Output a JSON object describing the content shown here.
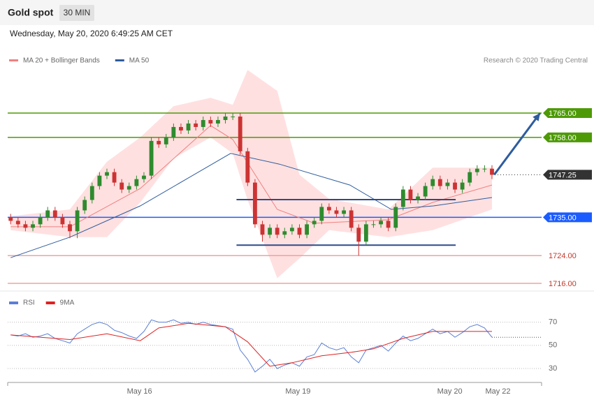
{
  "header": {
    "title": "Gold spot",
    "timeframe": "30 MIN",
    "timestamp": "Wednesday, May 20, 2020 6:49:25 AM CET",
    "source": "Research © 2020 Trading Central"
  },
  "chart_data": [
    {
      "type": "candlestick",
      "xlim": [
        -0.4,
        71.7
      ],
      "ylim": [
        1714.2,
        1789.5
      ],
      "up_color": "#2e8b2e",
      "down_color": "#cc3333",
      "open": [
        1735,
        1734,
        1733,
        1732,
        1733,
        1735,
        1737,
        1735,
        1733,
        1731,
        1737,
        1740,
        1744,
        1747,
        1748,
        1745,
        1743,
        1744,
        1746,
        1747,
        1757,
        1756,
        1758,
        1761,
        1760,
        1762,
        1761,
        1763,
        1762,
        1763,
        1764,
        1764,
        1754,
        1745,
        1733,
        1730,
        1732,
        1730,
        1731,
        1732,
        1730,
        1733,
        1734,
        1738,
        1737,
        1736,
        1737,
        1732,
        1728,
        1733,
        1733,
        1734,
        1732,
        1738,
        1743,
        1740,
        1741,
        1744,
        1746,
        1744,
        1745,
        1743,
        1745,
        1748,
        1749,
        1749
      ],
      "high": [
        1736,
        1735,
        1734,
        1734,
        1736,
        1738,
        1738,
        1736,
        1734,
        1738,
        1741,
        1745,
        1748,
        1749,
        1749,
        1746,
        1745,
        1747,
        1748,
        1758,
        1758,
        1759,
        1762,
        1762,
        1763,
        1763,
        1764,
        1764,
        1764,
        1765,
        1765,
        1765,
        1755,
        1746,
        1734,
        1733,
        1733,
        1732,
        1733,
        1733,
        1734,
        1735,
        1739,
        1739,
        1738,
        1738,
        1738,
        1733,
        1734,
        1734,
        1735,
        1735,
        1739,
        1744,
        1744,
        1742,
        1745,
        1747,
        1747,
        1746,
        1746,
        1746,
        1749,
        1750,
        1750,
        1750
      ],
      "low": [
        1733,
        1732,
        1731,
        1731,
        1732,
        1734,
        1734,
        1732,
        1729,
        1729,
        1736,
        1739,
        1743,
        1746,
        1744,
        1742,
        1742,
        1743,
        1745,
        1746,
        1755,
        1755,
        1757,
        1759,
        1759,
        1760,
        1760,
        1761,
        1761,
        1762,
        1763,
        1753,
        1744,
        1732,
        1728,
        1729,
        1729,
        1729,
        1730,
        1729,
        1729,
        1732,
        1733,
        1736,
        1735,
        1735,
        1731,
        1724,
        1727,
        1732,
        1732,
        1731,
        1731,
        1737,
        1739,
        1739,
        1740,
        1743,
        1743,
        1743,
        1742,
        1742,
        1744,
        1747,
        1748,
        1746
      ],
      "close": [
        1734,
        1733,
        1732,
        1733,
        1735,
        1737,
        1735,
        1733,
        1731,
        1737,
        1740,
        1744,
        1747,
        1748,
        1745,
        1743,
        1744,
        1746,
        1747,
        1757,
        1756,
        1758,
        1761,
        1760,
        1762,
        1761,
        1763,
        1762,
        1763,
        1764,
        1764,
        1754,
        1745,
        1733,
        1730,
        1732,
        1730,
        1731,
        1732,
        1730,
        1733,
        1734,
        1738,
        1737,
        1736,
        1737,
        1732,
        1728,
        1733,
        1733,
        1734,
        1732,
        1738,
        1743,
        1740,
        1741,
        1744,
        1746,
        1744,
        1745,
        1743,
        1745,
        1748,
        1749,
        1749,
        1747.25
      ],
      "series": [
        {
          "name": "MA 20 + Bollinger Bands",
          "color": "#f08080",
          "x": [
            0,
            8,
            17.5,
            27,
            30,
            36,
            41,
            51,
            57,
            65
          ],
          "values": [
            1732.3,
            1732.3,
            1743.3,
            1761.4,
            1757.4,
            1737.3,
            1733.3,
            1734.3,
            1739.3,
            1744.3
          ]
        },
        {
          "name": "MA 50",
          "color": "#2e5c9e",
          "x": [
            0,
            8,
            17.5,
            29.7,
            36.3,
            45.8,
            51.4,
            57.1,
            65
          ],
          "values": [
            1723.4,
            1729.3,
            1738.3,
            1753.4,
            1750.3,
            1744.3,
            1737.3,
            1738.3,
            1740.7
          ]
        }
      ],
      "bands": {
        "color": "#ffd6d6",
        "x": [
          0,
          8,
          13,
          17.5,
          22,
          27,
          30,
          32,
          36,
          39,
          43,
          51,
          57,
          65
        ],
        "upper": [
          1735.3,
          1737.3,
          1751,
          1758,
          1767,
          1769.4,
          1767.4,
          1777.4,
          1771.4,
          1747.3,
          1740.3,
          1737.3,
          1749.3,
          1749.3
        ],
        "lower": [
          1731.3,
          1729.3,
          1729.3,
          1739.3,
          1752,
          1758,
          1753.4,
          1740,
          1717.5,
          1723.2,
          1731.3,
          1729.3,
          1731.3,
          1737.3
        ]
      },
      "levels": [
        {
          "value": 1765,
          "label": "1765.00",
          "color": "#4d9a06",
          "label_box": true,
          "line": "solid"
        },
        {
          "value": 1758,
          "label": "1758.00",
          "color": "#4d9a06",
          "label_box": true,
          "line": "solid"
        },
        {
          "value": 1747.25,
          "label": "1747.25",
          "color": "#333333",
          "label_box": true,
          "line": "dotted"
        },
        {
          "value": 1735,
          "label": "1735.00",
          "color": "#1a5cff",
          "label_box": true,
          "line": "solid"
        },
        {
          "value": 1724,
          "label": "1724.00",
          "color": "#f4a0a0",
          "label_box": false,
          "line": "solid"
        },
        {
          "value": 1716,
          "label": "1716.00",
          "color": "#f4a0a0",
          "label_box": false,
          "line": "solid"
        }
      ],
      "ranges": [
        {
          "value": 1740.1,
          "from": 30.5,
          "to": 60.1
        },
        {
          "value": 1727,
          "from": 30.5,
          "to": 60.1
        }
      ],
      "range_color": "#2e4a8a",
      "arrow": {
        "x": [
          65.3,
          71.5
        ],
        "y": [
          1747.25,
          1765
        ],
        "color": "#2e5c9e"
      }
    },
    {
      "type": "line",
      "xlim": [
        -0.4,
        71.7
      ],
      "ylim": [
        18,
        83
      ],
      "yticks": [
        30,
        50,
        70
      ],
      "grid": true,
      "xticks": [
        {
          "value": 17.4,
          "label": "May 16"
        },
        {
          "value": 38.8,
          "label": "May 19"
        },
        {
          "value": 59.3,
          "label": "May 20"
        },
        {
          "value": 65.8,
          "label": "May 22"
        }
      ],
      "series": [
        {
          "name": "RSI",
          "color": "#5b7fd6",
          "values": [
            59,
            58,
            60,
            57,
            58,
            60,
            56,
            54,
            52,
            60,
            64,
            68,
            70,
            68,
            63,
            61,
            58,
            56,
            62,
            72,
            70,
            70,
            72,
            69,
            70,
            68,
            70,
            68,
            67,
            66,
            64,
            46,
            38,
            27,
            32,
            38,
            30,
            33,
            35,
            32,
            40,
            42,
            52,
            48,
            46,
            48,
            40,
            35,
            46,
            48,
            50,
            45,
            52,
            58,
            54,
            56,
            60,
            64,
            60,
            62,
            57,
            61,
            66,
            68,
            65,
            57
          ]
        },
        {
          "name": "9MA",
          "color": "#e02020",
          "x": [
            0,
            8,
            13,
            17.5,
            20,
            24,
            29,
            32,
            35,
            38,
            42,
            46,
            49,
            53,
            57,
            60,
            65
          ],
          "values": [
            59,
            55,
            60,
            54,
            65,
            69,
            66,
            53,
            32,
            35,
            41,
            44,
            47,
            56,
            62,
            62,
            62
          ]
        }
      ]
    }
  ]
}
